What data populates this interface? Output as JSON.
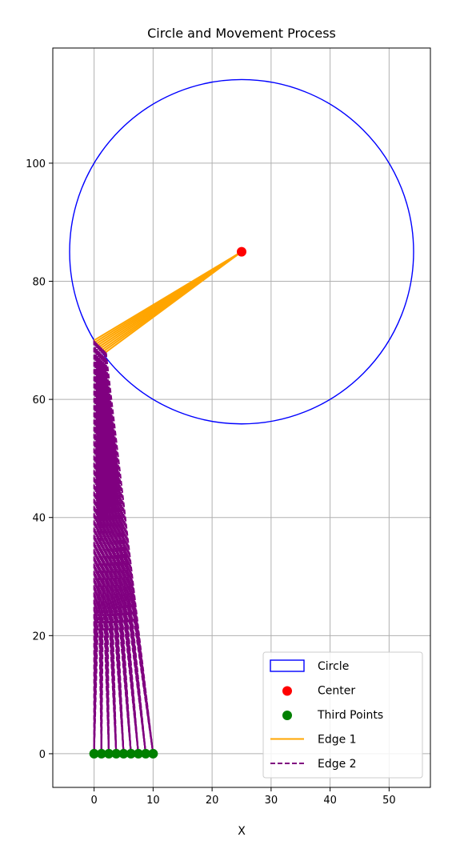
{
  "chart_data": {
    "type": "scatter",
    "title": "Circle and Movement Process",
    "xlabel": "X",
    "ylabel": "",
    "xlim": [
      -7,
      57
    ],
    "ylim": [
      -5.7,
      119.5
    ],
    "xticks": [
      0,
      10,
      20,
      30,
      40,
      50
    ],
    "yticks": [
      0,
      20,
      40,
      60,
      80,
      100
    ],
    "grid": true,
    "legend_position": "lower right",
    "colors": {
      "circle": "#0000ff",
      "center": "#ff0000",
      "third_points": "#008000",
      "edge1": "#ffa500",
      "edge2": "#800080",
      "grid": "#b0b0b0"
    },
    "circle": {
      "name": "Circle",
      "cx": 25,
      "cy": 85,
      "r": 29.15
    },
    "center": {
      "name": "Center",
      "x": 25,
      "y": 85
    },
    "moving_points": [
      {
        "x": 0,
        "y": 70
      },
      {
        "x": 0.25,
        "y": 69.75
      },
      {
        "x": 0.5,
        "y": 69.5
      },
      {
        "x": 0.75,
        "y": 69.25
      },
      {
        "x": 1,
        "y": 69
      },
      {
        "x": 1.25,
        "y": 68.75
      },
      {
        "x": 1.5,
        "y": 68.5
      },
      {
        "x": 1.75,
        "y": 68.25
      },
      {
        "x": 2,
        "y": 68
      }
    ],
    "third_points": {
      "name": "Third Points",
      "x": [
        0,
        1.25,
        2.5,
        3.75,
        5,
        6.25,
        7.5,
        8.75,
        10
      ],
      "y": [
        0,
        0,
        0,
        0,
        0,
        0,
        0,
        0,
        0
      ]
    },
    "edge1": {
      "name": "Edge 1"
    },
    "edge2": {
      "name": "Edge 2"
    },
    "legend": [
      {
        "label": "Circle",
        "kind": "rect",
        "color": "#0000ff"
      },
      {
        "label": "Center",
        "kind": "dot",
        "color": "#ff0000"
      },
      {
        "label": "Third Points",
        "kind": "dot",
        "color": "#008000"
      },
      {
        "label": "Edge 1",
        "kind": "line",
        "color": "#ffa500"
      },
      {
        "label": "Edge 2",
        "kind": "dash",
        "color": "#800080"
      }
    ]
  }
}
